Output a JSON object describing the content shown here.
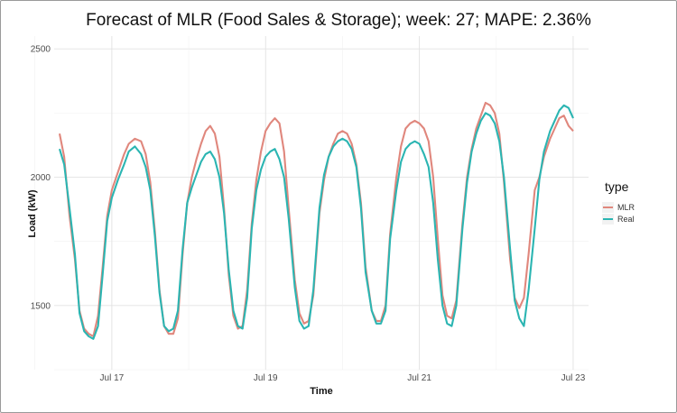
{
  "chart_data": {
    "type": "line",
    "title": "Forecast of MLR (Food Sales & Storage); week: 27; MAPE: 2.36%",
    "xlabel": "Time",
    "ylabel": "Load (kW)",
    "x_ticks": [
      "Jul 17",
      "Jul 19",
      "Jul 21",
      "Jul 23"
    ],
    "x_tick_days": [
      17,
      19,
      21,
      23
    ],
    "xlim": [
      16.25,
      23.2
    ],
    "y_ticks": [
      1500,
      2000,
      2500
    ],
    "ylim": [
      1250,
      2550
    ],
    "grid": true,
    "legend": {
      "title": "type",
      "position": "right"
    },
    "series": [
      {
        "name": "MLR",
        "color": "#E0877D",
        "points": [
          [
            16.32,
            2170
          ],
          [
            16.38,
            2080
          ],
          [
            16.45,
            1850
          ],
          [
            16.52,
            1680
          ],
          [
            16.58,
            1480
          ],
          [
            16.64,
            1410
          ],
          [
            16.7,
            1390
          ],
          [
            16.76,
            1380
          ],
          [
            16.82,
            1460
          ],
          [
            16.88,
            1650
          ],
          [
            16.94,
            1850
          ],
          [
            17.0,
            1950
          ],
          [
            17.08,
            2020
          ],
          [
            17.16,
            2090
          ],
          [
            17.22,
            2130
          ],
          [
            17.3,
            2150
          ],
          [
            17.38,
            2140
          ],
          [
            17.44,
            2090
          ],
          [
            17.5,
            1980
          ],
          [
            17.56,
            1790
          ],
          [
            17.62,
            1560
          ],
          [
            17.68,
            1420
          ],
          [
            17.74,
            1390
          ],
          [
            17.8,
            1390
          ],
          [
            17.86,
            1450
          ],
          [
            17.92,
            1700
          ],
          [
            17.98,
            1900
          ],
          [
            18.04,
            2000
          ],
          [
            18.1,
            2070
          ],
          [
            18.16,
            2130
          ],
          [
            18.22,
            2180
          ],
          [
            18.28,
            2200
          ],
          [
            18.34,
            2170
          ],
          [
            18.4,
            2080
          ],
          [
            18.46,
            1880
          ],
          [
            18.52,
            1620
          ],
          [
            18.58,
            1460
          ],
          [
            18.64,
            1410
          ],
          [
            18.7,
            1420
          ],
          [
            18.76,
            1560
          ],
          [
            18.82,
            1820
          ],
          [
            18.88,
            1990
          ],
          [
            18.94,
            2100
          ],
          [
            19.0,
            2180
          ],
          [
            19.06,
            2210
          ],
          [
            19.12,
            2230
          ],
          [
            19.18,
            2210
          ],
          [
            19.24,
            2100
          ],
          [
            19.3,
            1880
          ],
          [
            19.38,
            1600
          ],
          [
            19.44,
            1470
          ],
          [
            19.5,
            1430
          ],
          [
            19.56,
            1440
          ],
          [
            19.62,
            1540
          ],
          [
            19.7,
            1860
          ],
          [
            19.76,
            1990
          ],
          [
            19.82,
            2080
          ],
          [
            19.88,
            2130
          ],
          [
            19.94,
            2170
          ],
          [
            20.0,
            2180
          ],
          [
            20.06,
            2170
          ],
          [
            20.12,
            2130
          ],
          [
            20.18,
            2050
          ],
          [
            20.24,
            1900
          ],
          [
            20.3,
            1650
          ],
          [
            20.38,
            1480
          ],
          [
            20.44,
            1440
          ],
          [
            20.5,
            1440
          ],
          [
            20.56,
            1500
          ],
          [
            20.62,
            1780
          ],
          [
            20.7,
            2000
          ],
          [
            20.76,
            2120
          ],
          [
            20.82,
            2190
          ],
          [
            20.88,
            2210
          ],
          [
            20.94,
            2220
          ],
          [
            21.0,
            2210
          ],
          [
            21.06,
            2190
          ],
          [
            21.12,
            2140
          ],
          [
            21.18,
            2000
          ],
          [
            21.24,
            1760
          ],
          [
            21.3,
            1540
          ],
          [
            21.36,
            1460
          ],
          [
            21.42,
            1450
          ],
          [
            21.48,
            1520
          ],
          [
            21.56,
            1820
          ],
          [
            21.62,
            2000
          ],
          [
            21.68,
            2110
          ],
          [
            21.74,
            2190
          ],
          [
            21.8,
            2240
          ],
          [
            21.86,
            2290
          ],
          [
            21.92,
            2280
          ],
          [
            21.98,
            2250
          ],
          [
            22.04,
            2170
          ],
          [
            22.1,
            1980
          ],
          [
            22.18,
            1680
          ],
          [
            22.24,
            1530
          ],
          [
            22.3,
            1490
          ],
          [
            22.36,
            1530
          ],
          [
            22.42,
            1700
          ],
          [
            22.5,
            1950
          ],
          [
            22.56,
            2000
          ],
          [
            22.62,
            2080
          ],
          [
            22.7,
            2150
          ],
          [
            22.76,
            2190
          ],
          [
            22.82,
            2230
          ],
          [
            22.88,
            2240
          ],
          [
            22.94,
            2200
          ],
          [
            23.0,
            2180
          ]
        ]
      },
      {
        "name": "Real",
        "color": "#2BB5B2",
        "points": [
          [
            16.32,
            2110
          ],
          [
            16.38,
            2050
          ],
          [
            16.45,
            1880
          ],
          [
            16.52,
            1700
          ],
          [
            16.58,
            1470
          ],
          [
            16.64,
            1400
          ],
          [
            16.7,
            1380
          ],
          [
            16.76,
            1370
          ],
          [
            16.82,
            1420
          ],
          [
            16.88,
            1620
          ],
          [
            16.94,
            1830
          ],
          [
            17.0,
            1920
          ],
          [
            17.08,
            1990
          ],
          [
            17.16,
            2050
          ],
          [
            17.22,
            2100
          ],
          [
            17.3,
            2120
          ],
          [
            17.38,
            2090
          ],
          [
            17.44,
            2040
          ],
          [
            17.5,
            1950
          ],
          [
            17.56,
            1770
          ],
          [
            17.62,
            1550
          ],
          [
            17.68,
            1420
          ],
          [
            17.74,
            1400
          ],
          [
            17.8,
            1410
          ],
          [
            17.86,
            1480
          ],
          [
            17.92,
            1720
          ],
          [
            17.98,
            1900
          ],
          [
            18.04,
            1960
          ],
          [
            18.1,
            2010
          ],
          [
            18.16,
            2060
          ],
          [
            18.22,
            2090
          ],
          [
            18.28,
            2100
          ],
          [
            18.34,
            2070
          ],
          [
            18.4,
            2000
          ],
          [
            18.46,
            1860
          ],
          [
            18.52,
            1640
          ],
          [
            18.58,
            1480
          ],
          [
            18.64,
            1420
          ],
          [
            18.7,
            1410
          ],
          [
            18.76,
            1530
          ],
          [
            18.82,
            1800
          ],
          [
            18.88,
            1950
          ],
          [
            18.94,
            2030
          ],
          [
            19.0,
            2080
          ],
          [
            19.06,
            2100
          ],
          [
            19.12,
            2110
          ],
          [
            19.18,
            2070
          ],
          [
            19.24,
            2000
          ],
          [
            19.3,
            1840
          ],
          [
            19.38,
            1570
          ],
          [
            19.44,
            1440
          ],
          [
            19.5,
            1410
          ],
          [
            19.56,
            1420
          ],
          [
            19.62,
            1560
          ],
          [
            19.7,
            1880
          ],
          [
            19.76,
            2010
          ],
          [
            19.82,
            2080
          ],
          [
            19.88,
            2120
          ],
          [
            19.94,
            2140
          ],
          [
            20.0,
            2150
          ],
          [
            20.06,
            2140
          ],
          [
            20.12,
            2110
          ],
          [
            20.18,
            2040
          ],
          [
            20.24,
            1880
          ],
          [
            20.3,
            1630
          ],
          [
            20.38,
            1480
          ],
          [
            20.44,
            1430
          ],
          [
            20.5,
            1430
          ],
          [
            20.56,
            1480
          ],
          [
            20.62,
            1760
          ],
          [
            20.7,
            1950
          ],
          [
            20.76,
            2060
          ],
          [
            20.82,
            2110
          ],
          [
            20.88,
            2130
          ],
          [
            20.94,
            2140
          ],
          [
            21.0,
            2130
          ],
          [
            21.06,
            2090
          ],
          [
            21.12,
            2040
          ],
          [
            21.18,
            1900
          ],
          [
            21.24,
            1680
          ],
          [
            21.3,
            1500
          ],
          [
            21.36,
            1430
          ],
          [
            21.42,
            1420
          ],
          [
            21.48,
            1500
          ],
          [
            21.56,
            1800
          ],
          [
            21.62,
            1980
          ],
          [
            21.68,
            2100
          ],
          [
            21.74,
            2170
          ],
          [
            21.8,
            2220
          ],
          [
            21.86,
            2250
          ],
          [
            21.92,
            2240
          ],
          [
            21.98,
            2210
          ],
          [
            22.04,
            2140
          ],
          [
            22.1,
            2000
          ],
          [
            22.18,
            1720
          ],
          [
            22.24,
            1520
          ],
          [
            22.3,
            1450
          ],
          [
            22.36,
            1420
          ],
          [
            22.42,
            1560
          ],
          [
            22.5,
            1800
          ],
          [
            22.56,
            1990
          ],
          [
            22.62,
            2100
          ],
          [
            22.7,
            2180
          ],
          [
            22.76,
            2220
          ],
          [
            22.82,
            2260
          ],
          [
            22.88,
            2280
          ],
          [
            22.94,
            2270
          ],
          [
            23.0,
            2230
          ]
        ]
      }
    ]
  }
}
